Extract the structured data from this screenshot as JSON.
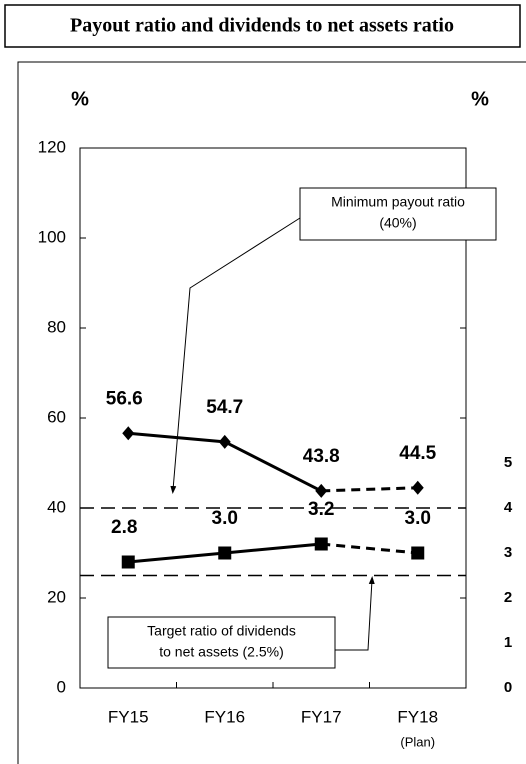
{
  "chart_data": {
    "type": "line",
    "title": "Payout ratio and dividends to net assets ratio",
    "ylabel": "%",
    "y2label": "%",
    "categories": [
      "FY15",
      "FY16",
      "FY17",
      "FY18"
    ],
    "category_notes": [
      null,
      null,
      null,
      "(Plan)"
    ],
    "projected": [
      false,
      false,
      false,
      true
    ],
    "series": [
      {
        "name": "Payout ratio",
        "color": "#000000",
        "marker": "diamond",
        "axis": "y",
        "values": [
          56.6,
          54.7,
          43.8,
          44.5
        ]
      },
      {
        "name": "Dividends to net assets ratio",
        "color": "#000000",
        "marker": "square",
        "axis": "y2",
        "values": [
          2.8,
          3.0,
          3.2,
          3.0
        ],
        "value_labels": [
          "2.8",
          "3.0",
          "3.2",
          "3.0"
        ]
      }
    ],
    "ylim": [
      0,
      120
    ],
    "yticks": [
      0,
      20,
      40,
      60,
      80,
      100,
      120
    ],
    "y2lim": [
      0,
      12
    ],
    "y2ticks": [
      0,
      1,
      2,
      3,
      4,
      5
    ],
    "reference_lines": [
      {
        "value": 40,
        "axis": "y",
        "label": [
          "Minimum payout ratio",
          "(40%)"
        ]
      },
      {
        "value": 2.5,
        "axis": "y2",
        "label": [
          "Target ratio of dividends",
          "to net assets (2.5%)"
        ]
      }
    ]
  }
}
